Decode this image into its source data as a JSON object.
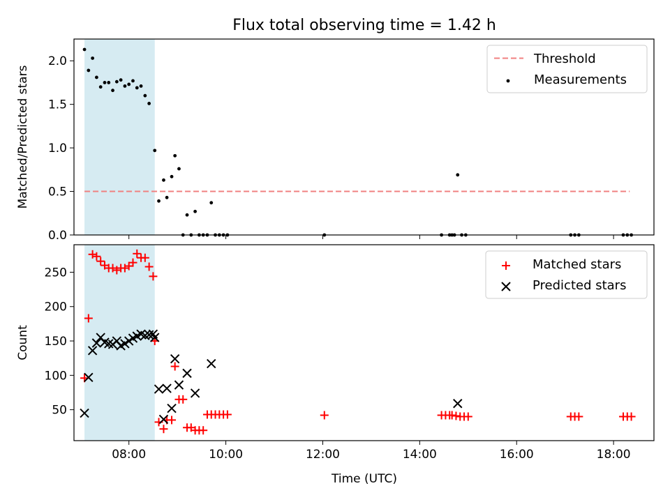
{
  "title": "Flux total observing time = 1.42 h",
  "xlabel": "Time (UTC)",
  "x_ticks": [
    "08:00",
    "10:00",
    "12:00",
    "14:00",
    "16:00",
    "18:00"
  ],
  "chart_data": [
    {
      "type": "scatter",
      "title": "Flux total observing time = 1.42 h",
      "xlabel": "",
      "ylabel": "Matched/Predicted stars",
      "xlim": [
        "06:52",
        "18:50"
      ],
      "ylim": [
        0,
        2.25
      ],
      "y_ticks": [
        0.0,
        0.5,
        1.0,
        1.5,
        2.0
      ],
      "y_tick_labels": [
        "0.0",
        "0.5",
        "1.0",
        "1.5",
        "2.0"
      ],
      "highlight_span": [
        "07:05",
        "08:32"
      ],
      "legend_position": "upper right",
      "threshold": {
        "name": "Threshold",
        "value": 0.5,
        "x_range": [
          "07:05",
          "18:20"
        ],
        "color": "#f08080"
      },
      "series": [
        {
          "name": "Measurements",
          "marker": "dot",
          "color": "#000000",
          "points": [
            [
              "07:05",
              2.13
            ],
            [
              "07:10",
              1.89
            ],
            [
              "07:15",
              2.03
            ],
            [
              "07:20",
              1.81
            ],
            [
              "07:25",
              1.7
            ],
            [
              "07:30",
              1.75
            ],
            [
              "07:35",
              1.75
            ],
            [
              "07:40",
              1.66
            ],
            [
              "07:45",
              1.76
            ],
            [
              "07:50",
              1.78
            ],
            [
              "07:55",
              1.71
            ],
            [
              "08:00",
              1.73
            ],
            [
              "08:05",
              1.77
            ],
            [
              "08:10",
              1.69
            ],
            [
              "08:15",
              1.71
            ],
            [
              "08:20",
              1.6
            ],
            [
              "08:25",
              1.51
            ],
            [
              "08:32",
              0.97
            ],
            [
              "08:37",
              0.39
            ],
            [
              "08:43",
              0.63
            ],
            [
              "08:47",
              0.43
            ],
            [
              "08:53",
              0.67
            ],
            [
              "08:57",
              0.91
            ],
            [
              "09:02",
              0.76
            ],
            [
              "09:07",
              0.0
            ],
            [
              "09:12",
              0.23
            ],
            [
              "09:17",
              0.0
            ],
            [
              "09:22",
              0.27
            ],
            [
              "09:27",
              0.0
            ],
            [
              "09:32",
              0.0
            ],
            [
              "09:37",
              0.0
            ],
            [
              "09:42",
              0.37
            ],
            [
              "09:47",
              0.0
            ],
            [
              "09:52",
              0.0
            ],
            [
              "09:57",
              0.0
            ],
            [
              "10:02",
              0.0
            ],
            [
              "12:02",
              0.0
            ],
            [
              "14:27",
              0.0
            ],
            [
              "14:37",
              0.0
            ],
            [
              "14:40",
              0.0
            ],
            [
              "14:43",
              0.0
            ],
            [
              "14:47",
              0.69
            ],
            [
              "14:52",
              0.0
            ],
            [
              "14:57",
              0.0
            ],
            [
              "17:07",
              0.0
            ],
            [
              "17:12",
              0.0
            ],
            [
              "17:17",
              0.0
            ],
            [
              "18:12",
              0.0
            ],
            [
              "18:17",
              0.0
            ],
            [
              "18:22",
              0.0
            ]
          ]
        }
      ]
    },
    {
      "type": "scatter",
      "title": "",
      "xlabel": "Time (UTC)",
      "ylabel": "Count",
      "xlim": [
        "06:52",
        "18:50"
      ],
      "ylim": [
        5,
        290
      ],
      "y_ticks": [
        50,
        100,
        150,
        200,
        250
      ],
      "y_tick_labels": [
        "50",
        "100",
        "150",
        "200",
        "250"
      ],
      "highlight_span": [
        "07:05",
        "08:32"
      ],
      "legend_position": "upper right",
      "series": [
        {
          "name": "Matched stars",
          "marker": "plus",
          "color": "#ff0000",
          "points": [
            [
              "07:05",
              96
            ],
            [
              "07:10",
              183
            ],
            [
              "07:15",
              276
            ],
            [
              "07:20",
              273
            ],
            [
              "07:25",
              266
            ],
            [
              "07:30",
              260
            ],
            [
              "07:35",
              256
            ],
            [
              "07:40",
              256
            ],
            [
              "07:45",
              253
            ],
            [
              "07:50",
              256
            ],
            [
              "07:55",
              256
            ],
            [
              "08:00",
              259
            ],
            [
              "08:05",
              264
            ],
            [
              "08:10",
              277
            ],
            [
              "08:15",
              271
            ],
            [
              "08:20",
              271
            ],
            [
              "08:25",
              258
            ],
            [
              "08:30",
              244
            ],
            [
              "08:32",
              150
            ],
            [
              "08:37",
              32
            ],
            [
              "08:43",
              22
            ],
            [
              "08:47",
              35
            ],
            [
              "08:53",
              35
            ],
            [
              "08:57",
              113
            ],
            [
              "09:02",
              65
            ],
            [
              "09:07",
              65
            ],
            [
              "09:12",
              24
            ],
            [
              "09:17",
              24
            ],
            [
              "09:22",
              20
            ],
            [
              "09:27",
              20
            ],
            [
              "09:32",
              20
            ],
            [
              "09:37",
              43
            ],
            [
              "09:42",
              43
            ],
            [
              "09:47",
              43
            ],
            [
              "09:52",
              43
            ],
            [
              "09:57",
              43
            ],
            [
              "10:02",
              43
            ],
            [
              "12:02",
              42
            ],
            [
              "14:27",
              42
            ],
            [
              "14:32",
              42
            ],
            [
              "14:37",
              42
            ],
            [
              "14:40",
              42
            ],
            [
              "14:45",
              41
            ],
            [
              "14:50",
              40
            ],
            [
              "14:55",
              40
            ],
            [
              "15:00",
              40
            ],
            [
              "17:07",
              40
            ],
            [
              "17:12",
              40
            ],
            [
              "17:17",
              40
            ],
            [
              "18:12",
              40
            ],
            [
              "18:17",
              40
            ],
            [
              "18:22",
              40
            ]
          ]
        },
        {
          "name": "Predicted stars",
          "marker": "x",
          "color": "#000000",
          "points": [
            [
              "07:05",
              45
            ],
            [
              "07:10",
              97
            ],
            [
              "07:15",
              136
            ],
            [
              "07:20",
              147
            ],
            [
              "07:25",
              155
            ],
            [
              "07:30",
              148
            ],
            [
              "07:35",
              146
            ],
            [
              "07:40",
              145
            ],
            [
              "07:45",
              150
            ],
            [
              "07:50",
              143
            ],
            [
              "07:55",
              146
            ],
            [
              "08:00",
              150
            ],
            [
              "08:05",
              154
            ],
            [
              "08:10",
              157
            ],
            [
              "08:15",
              160
            ],
            [
              "08:20",
              158
            ],
            [
              "08:25",
              159
            ],
            [
              "08:30",
              160
            ],
            [
              "08:32",
              155
            ],
            [
              "08:37",
              80
            ],
            [
              "08:43",
              36
            ],
            [
              "08:47",
              81
            ],
            [
              "08:53",
              52
            ],
            [
              "08:57",
              124
            ],
            [
              "09:02",
              86
            ],
            [
              "09:12",
              103
            ],
            [
              "09:22",
              74
            ],
            [
              "09:42",
              117
            ],
            [
              "14:47",
              59
            ]
          ]
        }
      ]
    }
  ]
}
